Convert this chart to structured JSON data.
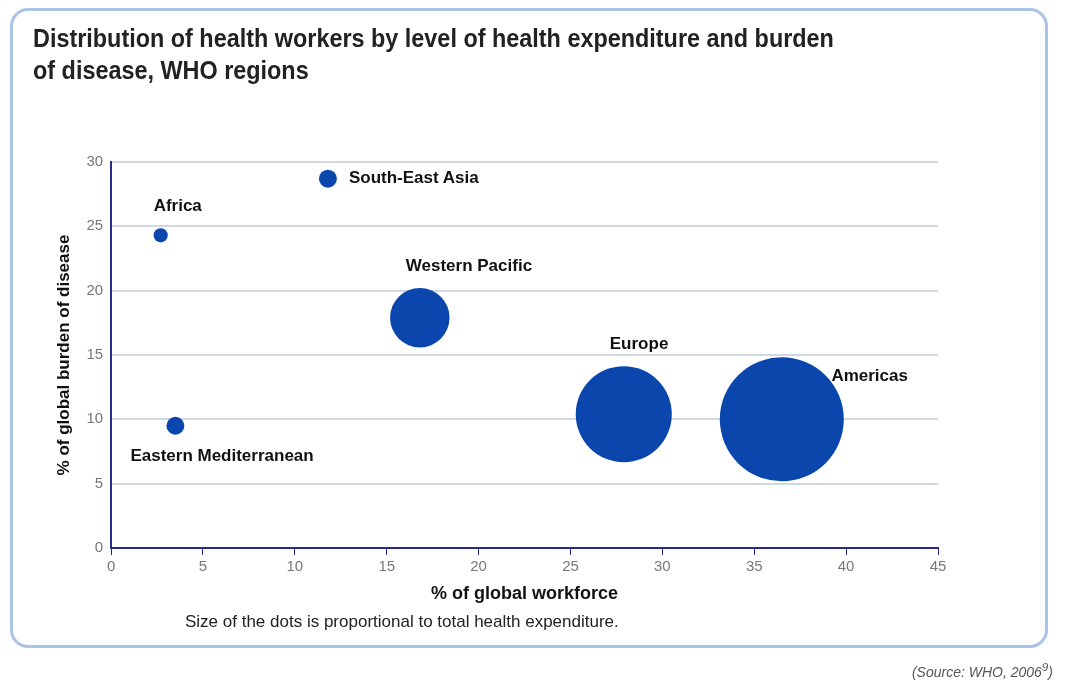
{
  "chart_data": {
    "type": "bubble",
    "title": "Distribution of health workers by level of health expenditure and burden of disease, WHO regions",
    "xlabel": "% of global workforce",
    "ylabel": "% of global burden of disease",
    "series": [
      {
        "name": "Africa",
        "color": "#0b46ad",
        "x": [
          2.7
        ],
        "values": [
          24.3
        ],
        "sizes": [
          0.013
        ]
      },
      {
        "name": "South-East Asia",
        "color": "#0b46ad",
        "x": [
          11.8
        ],
        "values": [
          28.7
        ],
        "sizes": [
          0.021
        ]
      },
      {
        "name": "Western Pacific",
        "color": "#0b46ad",
        "x": [
          16.8
        ],
        "values": [
          17.9
        ],
        "sizes": [
          0.23
        ]
      },
      {
        "name": "Europe",
        "color": "#0b46ad",
        "x": [
          27.9
        ],
        "values": [
          10.4
        ],
        "sizes": [
          0.6
        ]
      },
      {
        "name": "Americas",
        "color": "#0b46ad",
        "x": [
          36.5
        ],
        "values": [
          10.0
        ],
        "sizes": [
          1
        ]
      },
      {
        "name": "Eastern Mediterranean",
        "color": "#0b46ad",
        "x": [
          3.5
        ],
        "values": [
          9.5
        ],
        "sizes": [
          0.021
        ]
      }
    ],
    "xlim": [
      0,
      45
    ],
    "xticks": [
      0,
      5,
      10,
      15,
      20,
      25,
      30,
      35,
      40,
      45
    ],
    "ylim": [
      0,
      30
    ],
    "yticks": [
      0,
      5,
      10,
      15,
      20,
      25,
      30
    ],
    "grid": "y",
    "legend": false,
    "annotations": [
      "Size of the dots is proportional to total health expenditure.",
      "(Source: WHO, 2006$^{9}$)"
    ]
  }
}
